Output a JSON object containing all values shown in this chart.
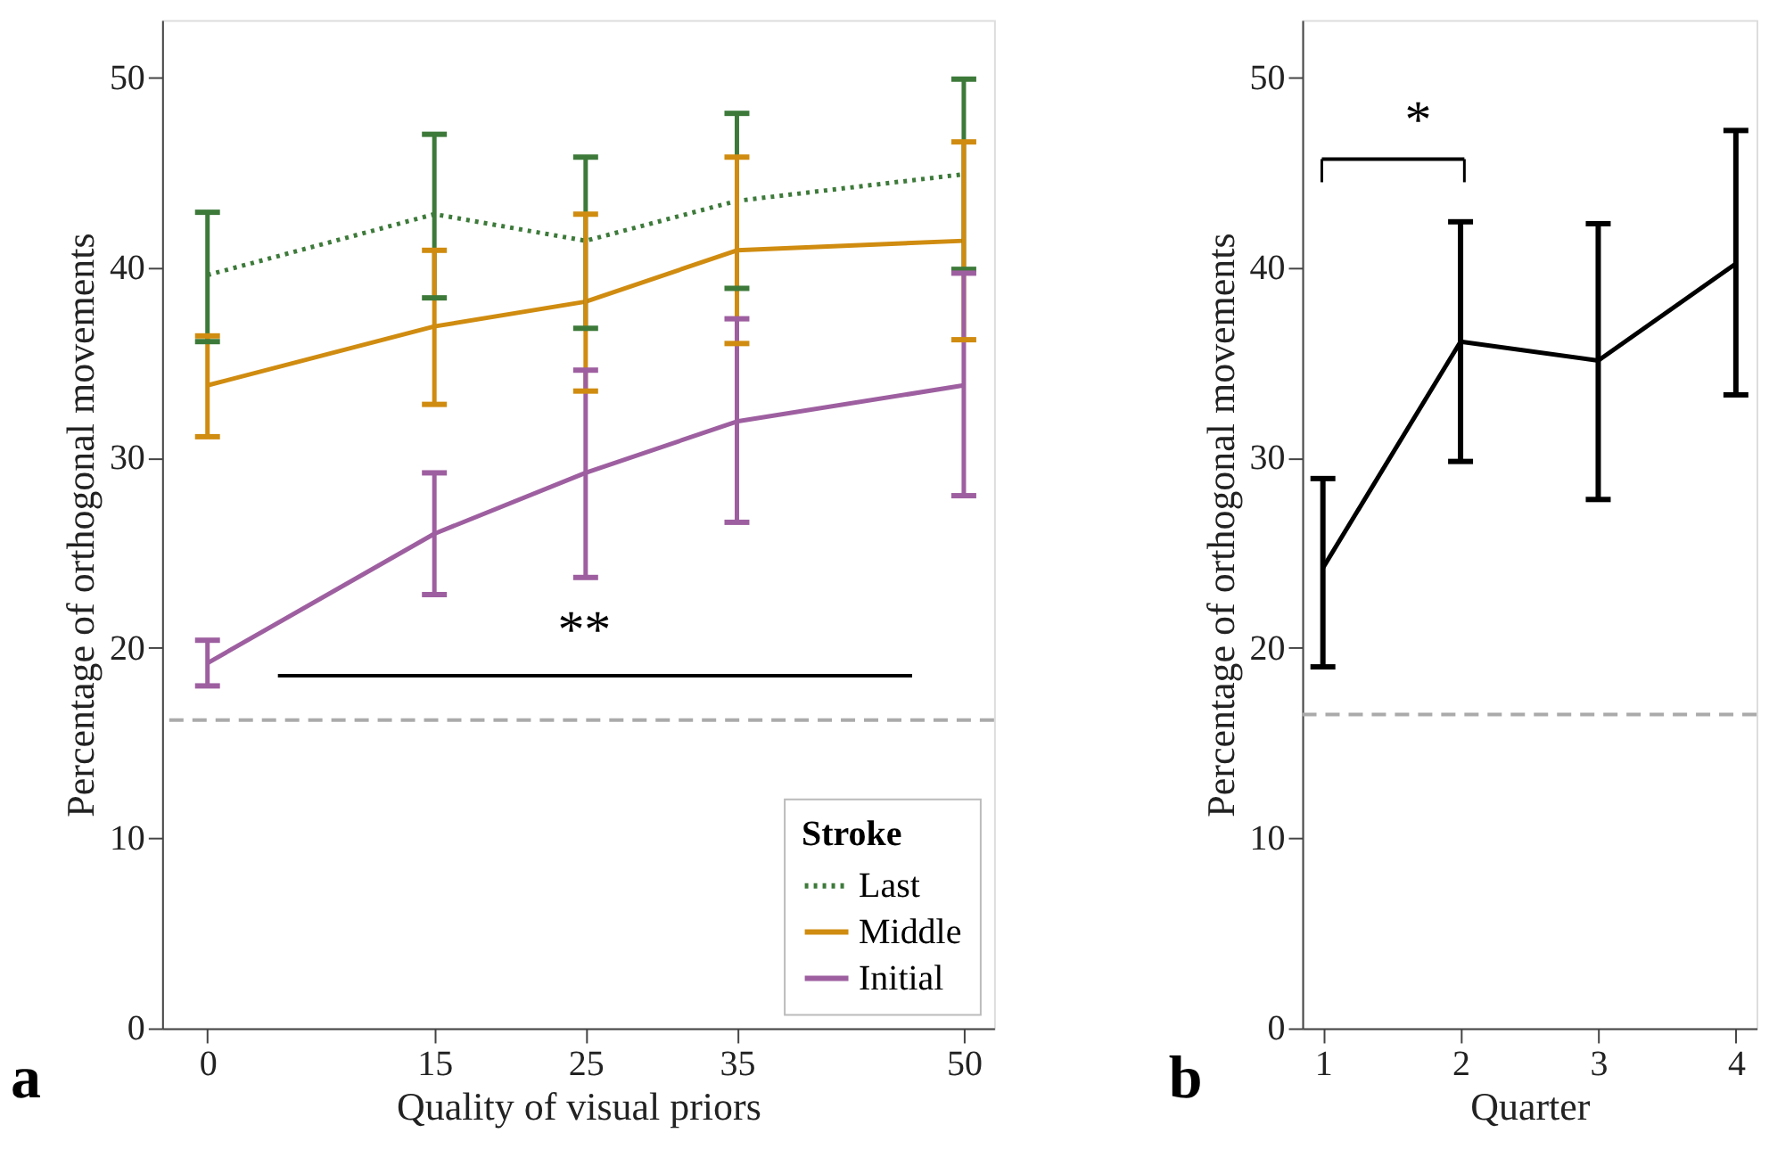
{
  "chart_data": [
    {
      "type": "line",
      "xlabel": "Quality of visual priors",
      "ylabel": "Percentage of orthogonal movements",
      "legend_title": "Stroke",
      "legend": "bottom right",
      "grid": false,
      "marker": "none",
      "x": [
        0,
        15,
        25,
        35,
        50
      ],
      "xlim": [
        -3,
        52
      ],
      "xticks": [
        0,
        15,
        25,
        35,
        50
      ],
      "ylim": [
        0,
        53
      ],
      "yticks": [
        0,
        10,
        20,
        30,
        40,
        50
      ],
      "series": [
        {
          "name": "Last",
          "color": "#3d7a3a",
          "line_style": "dotted",
          "values": [
            39.6,
            42.8,
            41.4,
            43.5,
            44.9
          ],
          "errors": [
            [
              36.1,
              42.9
            ],
            [
              38.4,
              47.0
            ],
            [
              36.8,
              45.8
            ],
            [
              38.9,
              48.1
            ],
            [
              39.9,
              49.9
            ]
          ]
        },
        {
          "name": "Middle",
          "color": "#d08c10",
          "line_style": "solid",
          "values": [
            33.8,
            36.9,
            38.2,
            40.9,
            41.4
          ],
          "errors": [
            [
              31.1,
              36.4
            ],
            [
              32.8,
              40.9
            ],
            [
              33.5,
              42.8
            ],
            [
              36.0,
              45.8
            ],
            [
              36.2,
              46.6
            ]
          ]
        },
        {
          "name": "Initial",
          "color": "#9e5fa0",
          "line_style": "solid",
          "values": [
            19.2,
            26.0,
            29.2,
            31.9,
            33.8
          ],
          "errors": [
            [
              18.0,
              20.4
            ],
            [
              22.8,
              29.2
            ],
            [
              23.7,
              34.6
            ],
            [
              26.6,
              37.3
            ],
            [
              28.0,
              39.7
            ]
          ]
        }
      ],
      "ref_lines": [
        {
          "axis": "y",
          "value": 16.2,
          "color": "#aaaaaa",
          "line_style": "dashed"
        }
      ],
      "annotations": [
        "**",
        "a"
      ]
    },
    {
      "type": "line",
      "xlabel": "Quarter",
      "ylabel": "Percentage of orthogonal movements",
      "legend": false,
      "grid": false,
      "marker": "none",
      "x": [
        1,
        2,
        3,
        4
      ],
      "xlim": [
        0.85,
        4.15
      ],
      "xticks": [
        1,
        2,
        3,
        4
      ],
      "ylim": [
        0,
        53
      ],
      "yticks": [
        0,
        10,
        20,
        30,
        40,
        50
      ],
      "series": [
        {
          "color": "#000000",
          "line_style": "solid",
          "values": [
            24.2,
            36.1,
            35.1,
            40.2
          ],
          "errors": [
            [
              19.0,
              28.9
            ],
            [
              29.8,
              42.4
            ],
            [
              27.8,
              42.3
            ],
            [
              33.3,
              47.2
            ]
          ]
        }
      ],
      "ref_lines": [
        {
          "axis": "y",
          "value": 16.5,
          "color": "#aaaaaa",
          "line_style": "dashed"
        }
      ],
      "annotations": [
        "*",
        "b"
      ]
    }
  ]
}
